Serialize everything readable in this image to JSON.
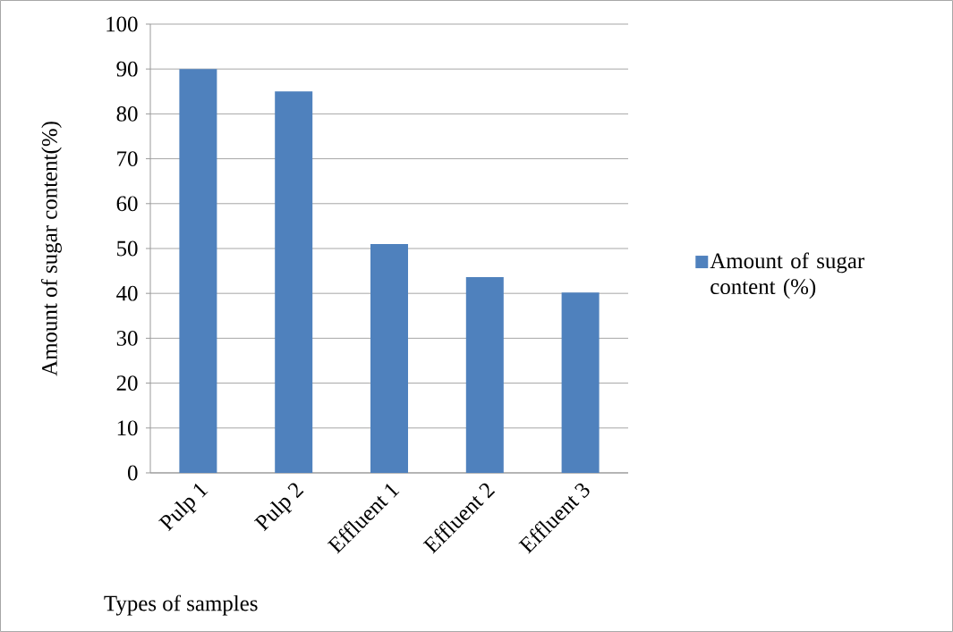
{
  "chart_data": {
    "type": "bar",
    "xlabel": "Types of samples",
    "ylabel": "Amount of sugar content(%)",
    "categories": [
      "Pulp 1",
      "Pulp 2",
      "Effluent 1",
      "Effluent 2",
      "Effluent 3"
    ],
    "series": [
      {
        "name": "Amount of sugar content  (%)",
        "color": "#4f81bd",
        "values": [
          90,
          85,
          51,
          43.6,
          40.2
        ]
      }
    ],
    "ylim": [
      0,
      100
    ],
    "yticks": [
      0,
      10,
      20,
      30,
      40,
      50,
      60,
      70,
      80,
      90,
      100
    ],
    "grid": "y",
    "legend": "right"
  }
}
